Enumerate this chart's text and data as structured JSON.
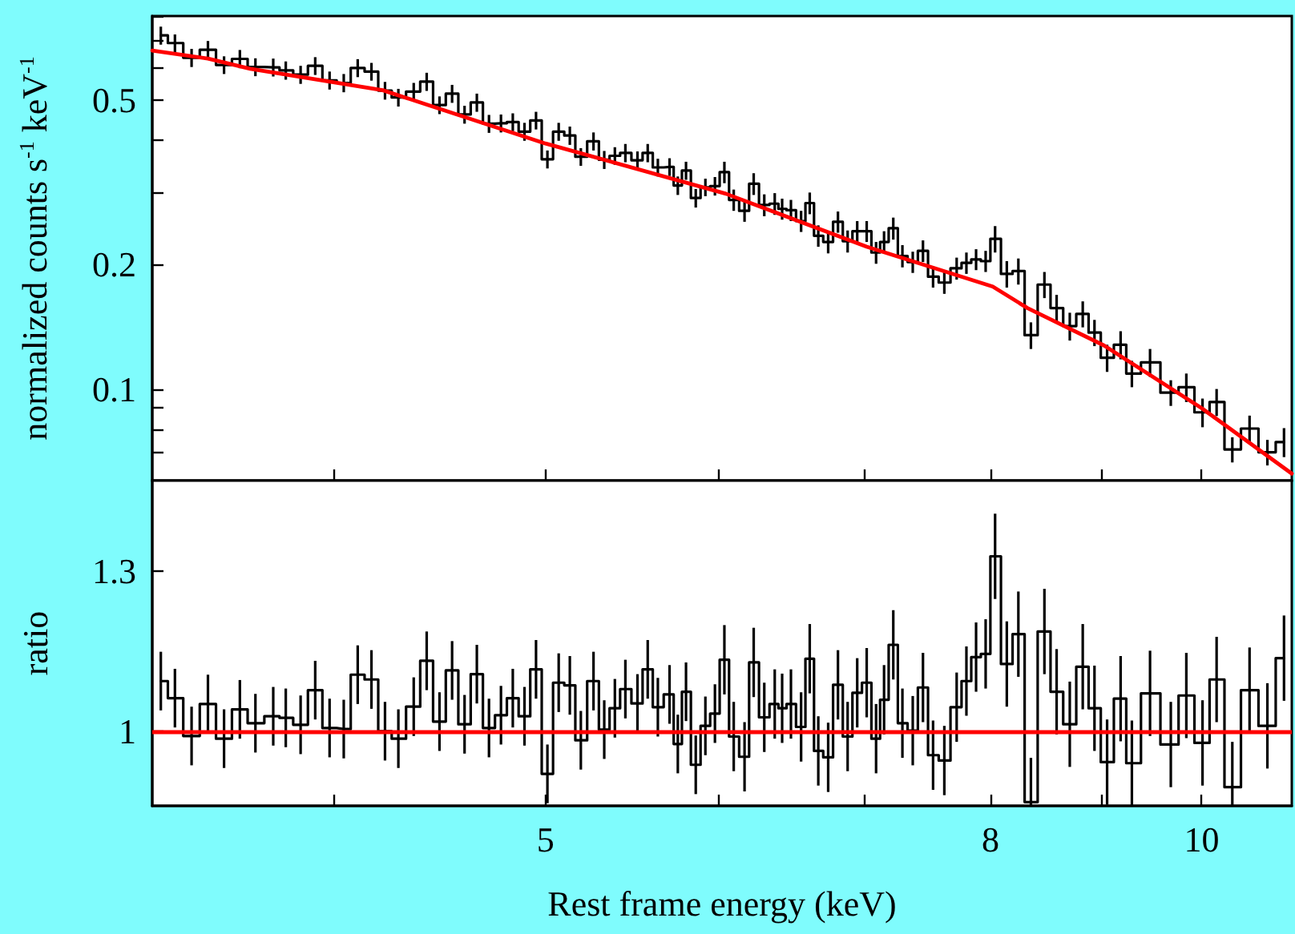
{
  "chart_data": [
    {
      "type": "step",
      "ylabel": "normalized counts s$^{-1}$ keV$^{-1}$",
      "log": "xy",
      "marker": "none",
      "tick_labels": "y",
      "xlim": [
        3.3,
        11
      ],
      "xticks": [
        {
          "value": 4,
          "label": null
        },
        5,
        {
          "value": 6,
          "label": null
        },
        {
          "value": 7,
          "label": null
        },
        8,
        {
          "value": 9,
          "label": null
        },
        10
      ],
      "ylim": [
        0.06,
        0.8
      ],
      "yticks": [
        {
          "value": 0.06,
          "label": null
        },
        {
          "value": 0.07,
          "label": null
        },
        {
          "value": 0.08,
          "label": null
        },
        {
          "value": 0.09,
          "label": null
        },
        0.1,
        0.2,
        {
          "value": 0.3,
          "label": null
        },
        {
          "value": 0.4,
          "label": null
        },
        0.5,
        {
          "value": 0.6,
          "label": null
        },
        {
          "value": 0.7,
          "label": null
        },
        {
          "value": 0.8,
          "label": null
        }
      ],
      "x": [
        3.33,
        3.38,
        3.44,
        3.5,
        3.56,
        3.62,
        3.68,
        3.75,
        3.8,
        3.86,
        3.92,
        3.98,
        4.04,
        4.1,
        4.16,
        4.22,
        4.28,
        4.35,
        4.41,
        4.47,
        4.53,
        4.59,
        4.65,
        4.71,
        4.77,
        4.83,
        4.89,
        4.95,
        5.01,
        5.07,
        5.13,
        5.19,
        5.26,
        5.32,
        5.38,
        5.44,
        5.51,
        5.57,
        5.63,
        5.7,
        5.75,
        5.8,
        5.86,
        5.92,
        5.98,
        6.04,
        6.1,
        6.17,
        6.23,
        6.3,
        6.37,
        6.42,
        6.48,
        6.55,
        6.61,
        6.67,
        6.74,
        6.81,
        6.88,
        6.95,
        7.02,
        7.09,
        7.15,
        7.22,
        7.29,
        7.37,
        7.45,
        7.53,
        7.62,
        7.72,
        7.8,
        7.88,
        7.96,
        8.04,
        8.14,
        8.24,
        8.35,
        8.47,
        8.58,
        8.7,
        8.82,
        8.93,
        9.05,
        9.18,
        9.29,
        9.47,
        9.68,
        9.84,
        10.01,
        10.16,
        10.33,
        10.52,
        10.72,
        10.91
      ],
      "series": [
        {
          "type": "step",
          "color": "#000000",
          "values": [
            0.718,
            0.688,
            0.634,
            0.663,
            0.609,
            0.63,
            0.602,
            0.601,
            0.591,
            0.577,
            0.606,
            0.559,
            0.551,
            0.599,
            0.587,
            0.528,
            0.508,
            0.525,
            0.555,
            0.487,
            0.519,
            0.462,
            0.494,
            0.439,
            0.44,
            0.443,
            0.42,
            0.447,
            0.36,
            0.42,
            0.411,
            0.365,
            0.398,
            0.359,
            0.367,
            0.373,
            0.358,
            0.373,
            0.344,
            0.345,
            0.311,
            0.338,
            0.29,
            0.308,
            0.31,
            0.335,
            0.287,
            0.27,
            0.314,
            0.279,
            0.281,
            0.273,
            0.271,
            0.255,
            0.282,
            0.235,
            0.227,
            0.254,
            0.228,
            0.241,
            0.241,
            0.214,
            0.227,
            0.245,
            0.21,
            0.203,
            0.216,
            0.187,
            0.181,
            0.196,
            0.202,
            0.206,
            0.204,
            0.231,
            0.19,
            0.193,
            0.135,
            0.179,
            0.157,
            0.142,
            0.152,
            0.137,
            0.119,
            0.128,
            0.109,
            0.116,
            0.098,
            0.101,
            0.0878,
            0.093,
            0.0714,
            0.0802,
            0.0703,
            0.0744
          ],
          "errors": [
            0.036,
            0.034,
            0.032,
            0.033,
            0.03,
            0.032,
            0.03,
            0.03,
            0.03,
            0.029,
            0.03,
            0.028,
            0.028,
            0.03,
            0.029,
            0.026,
            0.025,
            0.026,
            0.028,
            0.024,
            0.026,
            0.023,
            0.025,
            0.022,
            0.022,
            0.022,
            0.021,
            0.022,
            0.018,
            0.021,
            0.021,
            0.018,
            0.02,
            0.018,
            0.018,
            0.019,
            0.018,
            0.019,
            0.017,
            0.017,
            0.016,
            0.017,
            0.015,
            0.015,
            0.016,
            0.02,
            0.017,
            0.016,
            0.019,
            0.017,
            0.017,
            0.016,
            0.016,
            0.015,
            0.017,
            0.014,
            0.014,
            0.015,
            0.014,
            0.014,
            0.014,
            0.013,
            0.014,
            0.015,
            0.013,
            0.012,
            0.013,
            0.011,
            0.011,
            0.012,
            0.012,
            0.012,
            0.012,
            0.017,
            0.014,
            0.014,
            0.01,
            0.013,
            0.012,
            0.011,
            0.011,
            0.01,
            0.009,
            0.01,
            0.008,
            0.009,
            0.007,
            0.008,
            0.007,
            0.007,
            0.005,
            0.006,
            0.005,
            0.006
          ]
        },
        {
          "type": "line",
          "color": "#ff0000",
          "x": [
            3.3,
            3.5,
            3.66,
            4.21,
            5.0,
            6.05,
            7.02,
            8.02,
            8.32,
            9.02,
            10.0,
            11.0
          ],
          "values": [
            0.66,
            0.631,
            0.596,
            0.529,
            0.393,
            0.297,
            0.221,
            0.177,
            0.157,
            0.1275,
            0.0899,
            0.0624
          ]
        }
      ]
    },
    {
      "type": "step",
      "xlabel": "Rest frame energy (keV)",
      "ylabel": "ratio",
      "log": "x",
      "marker": "none",
      "xlim": [
        3.3,
        11
      ],
      "xticks": [
        {
          "value": 4,
          "label": null
        },
        5,
        {
          "value": 6,
          "label": null
        },
        {
          "value": 7,
          "label": null
        },
        8,
        {
          "value": 9,
          "label": null
        },
        10
      ],
      "ylim": [
        0.86,
        1.47
      ],
      "yticks": [
        1,
        1.3
      ],
      "x": [
        3.33,
        3.38,
        3.44,
        3.5,
        3.56,
        3.62,
        3.68,
        3.75,
        3.8,
        3.86,
        3.92,
        3.98,
        4.04,
        4.1,
        4.16,
        4.22,
        4.28,
        4.35,
        4.41,
        4.47,
        4.53,
        4.59,
        4.65,
        4.71,
        4.77,
        4.83,
        4.89,
        4.95,
        5.01,
        5.07,
        5.13,
        5.19,
        5.26,
        5.32,
        5.38,
        5.44,
        5.51,
        5.57,
        5.63,
        5.7,
        5.75,
        5.8,
        5.86,
        5.92,
        5.98,
        6.04,
        6.1,
        6.17,
        6.23,
        6.3,
        6.37,
        6.42,
        6.48,
        6.55,
        6.61,
        6.67,
        6.74,
        6.81,
        6.88,
        6.95,
        7.02,
        7.09,
        7.15,
        7.22,
        7.29,
        7.37,
        7.45,
        7.53,
        7.62,
        7.72,
        7.8,
        7.88,
        7.96,
        8.04,
        8.14,
        8.24,
        8.35,
        8.47,
        8.58,
        8.7,
        8.82,
        8.93,
        9.05,
        9.18,
        9.29,
        9.47,
        9.68,
        9.84,
        10.01,
        10.16,
        10.33,
        10.52,
        10.72,
        10.91
      ],
      "series": [
        {
          "type": "step",
          "color": "#000000",
          "values": [
            1.094,
            1.062,
            0.991,
            1.051,
            0.986,
            1.041,
            1.015,
            1.028,
            1.025,
            1.012,
            1.077,
            1.006,
            1.004,
            1.106,
            1.097,
            1.0,
            0.986,
            1.046,
            1.132,
            1.018,
            1.114,
            1.013,
            1.107,
            1.006,
            1.03,
            1.062,
            1.028,
            1.116,
            0.92,
            1.091,
            1.086,
            0.983,
            1.094,
            1.003,
            1.043,
            1.079,
            1.052,
            1.116,
            1.045,
            1.069,
            0.976,
            1.074,
            0.937,
            1.01,
            1.033,
            1.134,
            0.99,
            0.952,
            1.129,
            1.026,
            1.051,
            1.043,
            1.051,
            1.008,
            1.136,
            0.963,
            0.951,
            1.087,
            0.99,
            1.072,
            1.091,
            0.986,
            1.059,
            1.162,
            1.015,
            1.001,
            1.082,
            0.955,
            0.945,
            1.045,
            1.094,
            1.139,
            1.145,
            1.328,
            1.126,
            1.182,
            0.867,
            1.187,
            1.074,
            1.013,
            1.121,
            1.043,
            0.942,
            1.061,
            0.94,
            1.071,
            0.975,
            1.067,
            0.978,
            1.097,
            0.895,
            1.077,
            1.01,
            1.137
          ],
          "errors": [
            0.055,
            0.055,
            0.055,
            0.055,
            0.055,
            0.055,
            0.055,
            0.055,
            0.055,
            0.055,
            0.055,
            0.055,
            0.055,
            0.055,
            0.055,
            0.055,
            0.055,
            0.055,
            0.055,
            0.055,
            0.055,
            0.055,
            0.055,
            0.055,
            0.055,
            0.055,
            0.055,
            0.055,
            0.055,
            0.055,
            0.055,
            0.055,
            0.055,
            0.055,
            0.055,
            0.055,
            0.055,
            0.055,
            0.055,
            0.055,
            0.055,
            0.055,
            0.055,
            0.055,
            0.055,
            0.065,
            0.065,
            0.065,
            0.065,
            0.065,
            0.065,
            0.065,
            0.065,
            0.065,
            0.065,
            0.065,
            0.065,
            0.065,
            0.065,
            0.065,
            0.065,
            0.065,
            0.065,
            0.065,
            0.065,
            0.065,
            0.065,
            0.065,
            0.065,
            0.065,
            0.065,
            0.065,
            0.065,
            0.08,
            0.08,
            0.08,
            [
              0.86,
              0.95
            ],
            0.08,
            0.08,
            0.08,
            0.08,
            0.08,
            0.08,
            0.08,
            0.08,
            0.08,
            0.08,
            0.08,
            0.08,
            0.08,
            [
              0.86,
              0.98
            ],
            0.08,
            0.08,
            0.08
          ]
        }
      ],
      "ref_lines": [
        {
          "axis": "y",
          "value": 1,
          "color": "#ff0000"
        }
      ]
    }
  ]
}
